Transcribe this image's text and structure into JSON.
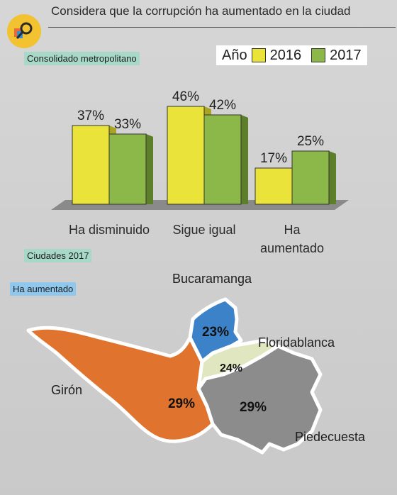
{
  "header": {
    "title": "Considera que la corrupción ha aumentado en la ciudad"
  },
  "tags": {
    "consolidated": "Consolidado metropolitano",
    "cities": "Ciudades 2017",
    "increased": "Ha aumentado"
  },
  "legend": {
    "label": "Año"
  },
  "colors": {
    "series_2016": "#e9e33a",
    "series_2017": "#8cb84a",
    "map_bucaramanga": "#3b82c9",
    "map_floridablanca": "#dfe6c0",
    "map_giron": "#e0742e",
    "map_piedecuesta": "#8c8c8c",
    "icon_bg": "#f2c230"
  },
  "icons": {
    "title_icon": "magnifier-icon"
  },
  "chart_data": {
    "type": "bar",
    "categories": [
      "Ha disminuido",
      "Sigue igual",
      "Ha aumentado"
    ],
    "series": [
      {
        "name": "2016",
        "values": [
          37,
          46,
          17
        ]
      },
      {
        "name": "2017",
        "values": [
          33,
          42,
          25
        ]
      }
    ],
    "data_labels": [
      [
        "37%",
        "46%",
        "17%"
      ],
      [
        "33%",
        "42%",
        "25%"
      ]
    ],
    "ylim": [
      0,
      50
    ],
    "legend_position": "top-right",
    "grid": false
  },
  "map": {
    "regions": [
      {
        "name": "Bucaramanga",
        "value": "23%"
      },
      {
        "name": "Floridablanca",
        "value": "24%"
      },
      {
        "name": "Girón",
        "value": "29%"
      },
      {
        "name": "Piedecuesta",
        "value": "29%"
      }
    ]
  }
}
